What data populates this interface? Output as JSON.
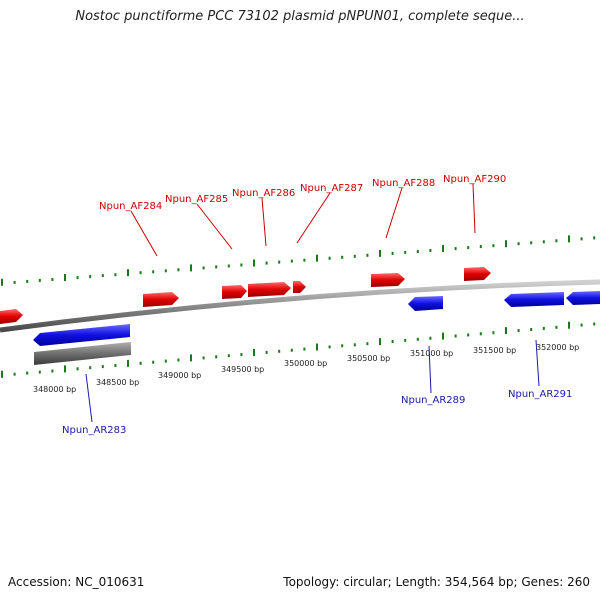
{
  "title": "Nostoc punctiforme PCC 73102 plasmid pNPUN01, complete seque...",
  "footer": {
    "accession": "Accession: NC_010631",
    "topology": "Topology: circular; Length: 354,564 bp; Genes: 260"
  },
  "colors": {
    "forward_gene": "#e00000",
    "reverse_gene": "#1010e0",
    "other_feature": "#707070",
    "backbone": "#8a8a8a",
    "ticks": "#1a7a1a",
    "forward_label": "#cc0000",
    "reverse_label": "#1a1aa6"
  },
  "scale_labels": [
    "348000 bp",
    "348500 bp",
    "349000 bp",
    "349500 bp",
    "350000 bp",
    "350500 bp",
    "351000 bp",
    "351500 bp",
    "352000 bp"
  ],
  "forward_labels": [
    "Npun_AF284",
    "Npun_AF285",
    "Npun_AF286",
    "Npun_AF287",
    "Npun_AF288",
    "Npun_AF290"
  ],
  "reverse_labels": [
    "Npun_AR283",
    "Npun_AR289",
    "Npun_AR291"
  ]
}
